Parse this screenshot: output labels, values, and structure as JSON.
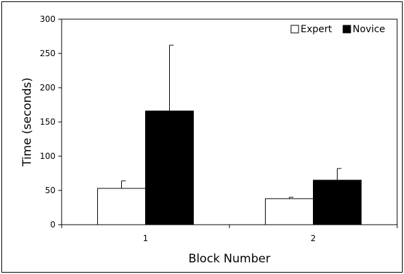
{
  "chart_data": {
    "type": "bar",
    "title": "",
    "xlabel": "Block Number",
    "ylabel": "Time (seconds)",
    "categories": [
      "1",
      "2"
    ],
    "ylim": [
      0,
      300
    ],
    "yticks": [
      0,
      50,
      100,
      150,
      200,
      250,
      300
    ],
    "grid": false,
    "legend_position": "top-right",
    "series": [
      {
        "name": "Expert",
        "values": [
          53,
          38
        ],
        "error_upper": [
          64,
          40
        ],
        "fill": "#ffffff"
      },
      {
        "name": "Novice",
        "values": [
          166,
          65
        ],
        "error_upper": [
          262,
          82
        ],
        "fill": "#000000"
      }
    ]
  }
}
